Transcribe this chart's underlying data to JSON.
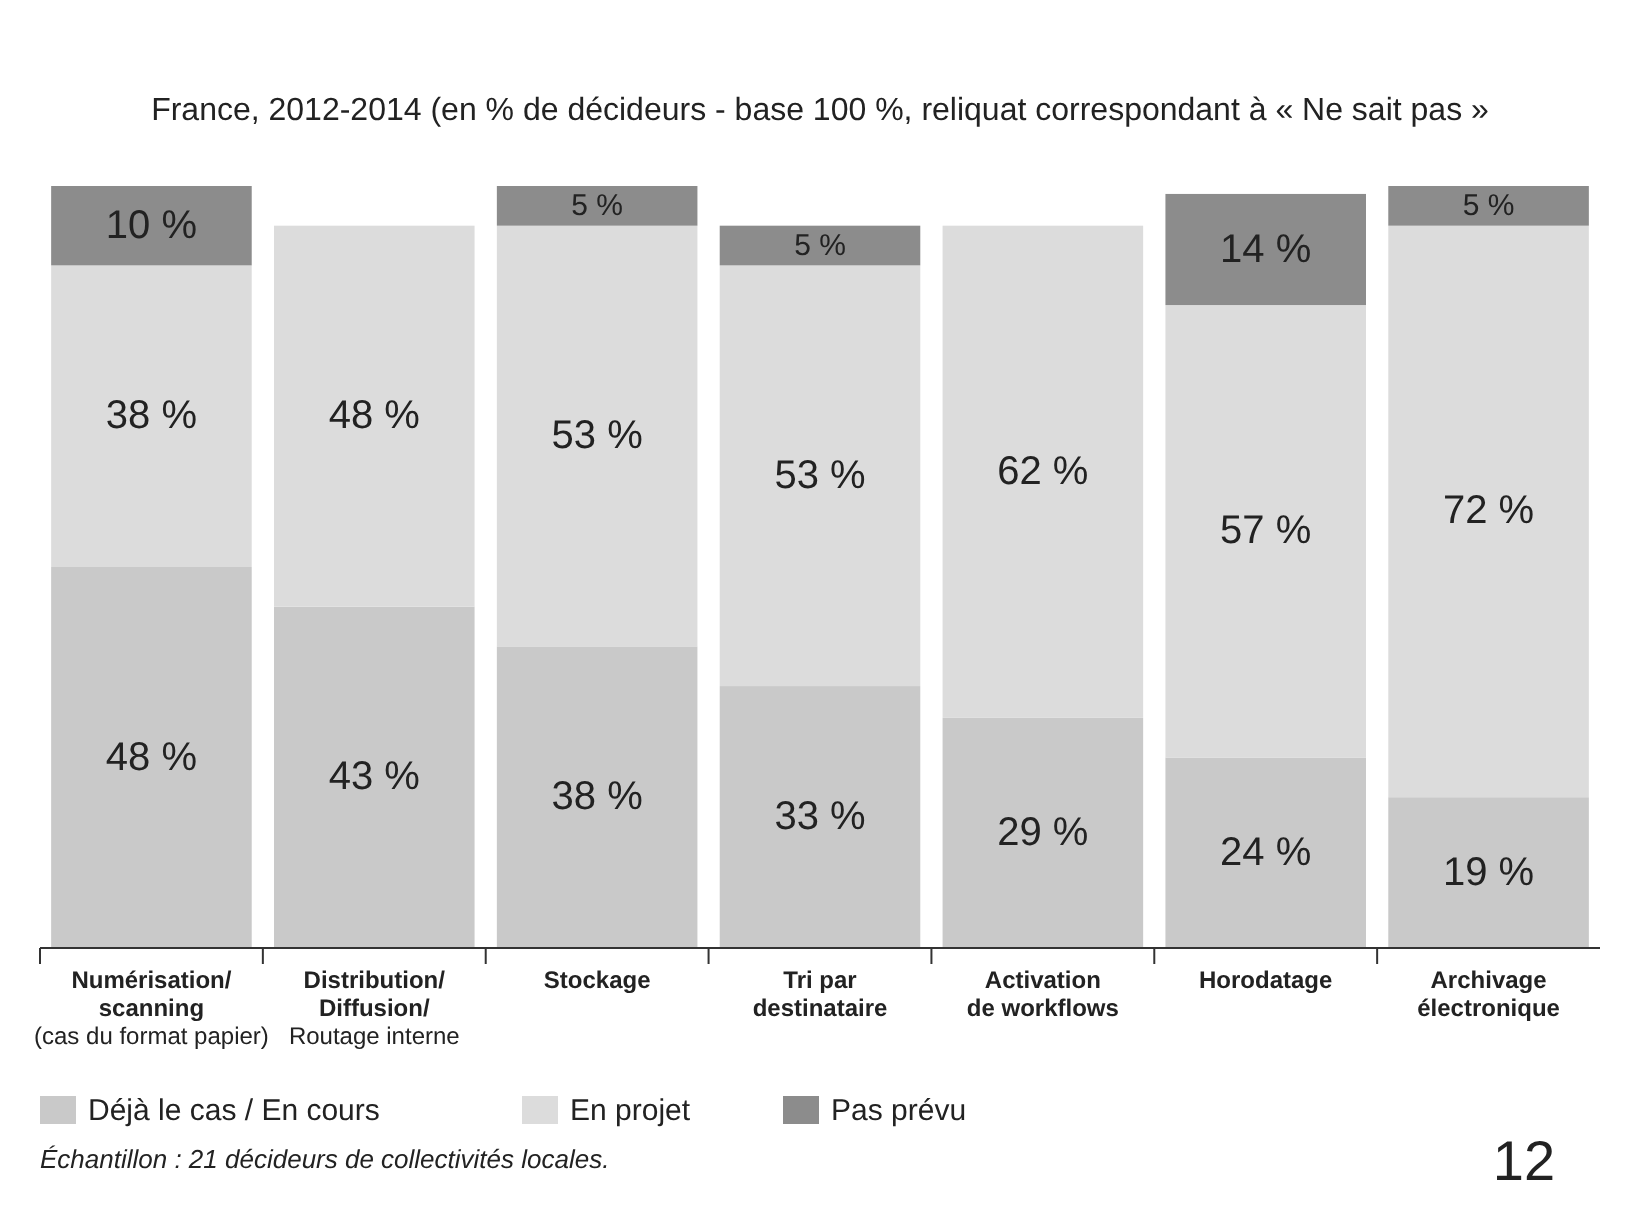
{
  "chart_data": {
    "type": "bar",
    "stacked": true,
    "title": "France, 2012-2014 (en % de décideurs - base 100 %,  reliquat correspondant à « Ne sait pas »",
    "categories": [
      "Numérisation/\nscanning\n(cas du format papier)",
      "Distribution/\nDiffusion/\nRoutage interne",
      "Stockage",
      "Tri par\ndestinataire",
      "Activation\nde workflows",
      "Horodatage",
      "Archivage\nélectronique"
    ],
    "series": [
      {
        "name": "Déjà le cas / En cours",
        "color": "#c9c9c9",
        "values": [
          48,
          43,
          38,
          33,
          29,
          24,
          19
        ],
        "value_labels": [
          "48 %",
          "43 %",
          "38 %",
          "33 %",
          "29 %",
          "24 %",
          "19 %"
        ]
      },
      {
        "name": "En projet",
        "color": "#dcdcdc",
        "values": [
          38,
          48,
          53,
          53,
          62,
          57,
          72
        ],
        "value_labels": [
          "38 %",
          "48 %",
          "53 %",
          "53 %",
          "62 %",
          "57 %",
          "72 %"
        ]
      },
      {
        "name": "Pas prévu",
        "color": "#8c8c8c",
        "values": [
          10,
          null,
          5,
          5,
          null,
          14,
          5
        ],
        "value_labels": [
          "10 %",
          null,
          "5 %",
          "5 %",
          null,
          "14 %",
          "5 %"
        ]
      }
    ],
    "legend": "bottom left",
    "annotations": [
      "Échantillon : 21 décideurs de collectivités locales.",
      "12"
    ]
  }
}
